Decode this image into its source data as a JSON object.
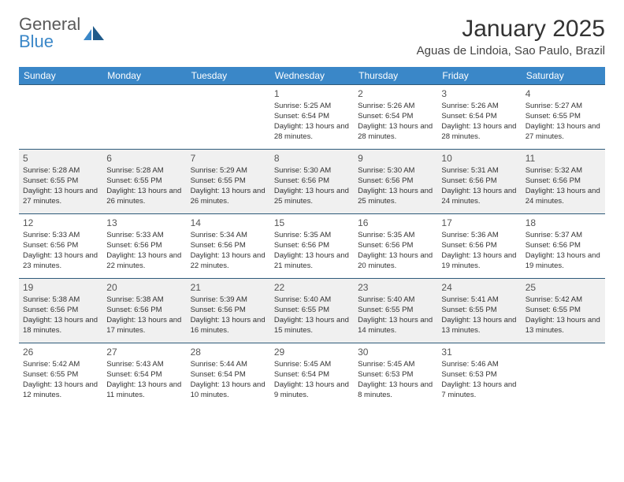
{
  "logo": {
    "text1": "General",
    "text2": "Blue"
  },
  "title": "January 2025",
  "location": "Aguas de Lindoia, Sao Paulo, Brazil",
  "colors": {
    "header_bg": "#3a87c8",
    "header_text": "#ffffff",
    "row_border": "#2e5a7a",
    "alt_row_bg": "#f0f0f0",
    "text": "#333333",
    "logo_gray": "#5a5a5a",
    "logo_blue": "#3a87c8"
  },
  "typography": {
    "title_fontsize": 30,
    "location_fontsize": 15,
    "daynum_fontsize": 12,
    "cell_fontsize": 9.5,
    "header_fontsize": 12
  },
  "day_headers": [
    "Sunday",
    "Monday",
    "Tuesday",
    "Wednesday",
    "Thursday",
    "Friday",
    "Saturday"
  ],
  "weeks": [
    [
      null,
      null,
      null,
      {
        "n": "1",
        "sr": "5:25 AM",
        "ss": "6:54 PM",
        "dl": "13 hours and 28 minutes."
      },
      {
        "n": "2",
        "sr": "5:26 AM",
        "ss": "6:54 PM",
        "dl": "13 hours and 28 minutes."
      },
      {
        "n": "3",
        "sr": "5:26 AM",
        "ss": "6:54 PM",
        "dl": "13 hours and 28 minutes."
      },
      {
        "n": "4",
        "sr": "5:27 AM",
        "ss": "6:55 PM",
        "dl": "13 hours and 27 minutes."
      }
    ],
    [
      {
        "n": "5",
        "sr": "5:28 AM",
        "ss": "6:55 PM",
        "dl": "13 hours and 27 minutes."
      },
      {
        "n": "6",
        "sr": "5:28 AM",
        "ss": "6:55 PM",
        "dl": "13 hours and 26 minutes."
      },
      {
        "n": "7",
        "sr": "5:29 AM",
        "ss": "6:55 PM",
        "dl": "13 hours and 26 minutes."
      },
      {
        "n": "8",
        "sr": "5:30 AM",
        "ss": "6:56 PM",
        "dl": "13 hours and 25 minutes."
      },
      {
        "n": "9",
        "sr": "5:30 AM",
        "ss": "6:56 PM",
        "dl": "13 hours and 25 minutes."
      },
      {
        "n": "10",
        "sr": "5:31 AM",
        "ss": "6:56 PM",
        "dl": "13 hours and 24 minutes."
      },
      {
        "n": "11",
        "sr": "5:32 AM",
        "ss": "6:56 PM",
        "dl": "13 hours and 24 minutes."
      }
    ],
    [
      {
        "n": "12",
        "sr": "5:33 AM",
        "ss": "6:56 PM",
        "dl": "13 hours and 23 minutes."
      },
      {
        "n": "13",
        "sr": "5:33 AM",
        "ss": "6:56 PM",
        "dl": "13 hours and 22 minutes."
      },
      {
        "n": "14",
        "sr": "5:34 AM",
        "ss": "6:56 PM",
        "dl": "13 hours and 22 minutes."
      },
      {
        "n": "15",
        "sr": "5:35 AM",
        "ss": "6:56 PM",
        "dl": "13 hours and 21 minutes."
      },
      {
        "n": "16",
        "sr": "5:35 AM",
        "ss": "6:56 PM",
        "dl": "13 hours and 20 minutes."
      },
      {
        "n": "17",
        "sr": "5:36 AM",
        "ss": "6:56 PM",
        "dl": "13 hours and 19 minutes."
      },
      {
        "n": "18",
        "sr": "5:37 AM",
        "ss": "6:56 PM",
        "dl": "13 hours and 19 minutes."
      }
    ],
    [
      {
        "n": "19",
        "sr": "5:38 AM",
        "ss": "6:56 PM",
        "dl": "13 hours and 18 minutes."
      },
      {
        "n": "20",
        "sr": "5:38 AM",
        "ss": "6:56 PM",
        "dl": "13 hours and 17 minutes."
      },
      {
        "n": "21",
        "sr": "5:39 AM",
        "ss": "6:56 PM",
        "dl": "13 hours and 16 minutes."
      },
      {
        "n": "22",
        "sr": "5:40 AM",
        "ss": "6:55 PM",
        "dl": "13 hours and 15 minutes."
      },
      {
        "n": "23",
        "sr": "5:40 AM",
        "ss": "6:55 PM",
        "dl": "13 hours and 14 minutes."
      },
      {
        "n": "24",
        "sr": "5:41 AM",
        "ss": "6:55 PM",
        "dl": "13 hours and 13 minutes."
      },
      {
        "n": "25",
        "sr": "5:42 AM",
        "ss": "6:55 PM",
        "dl": "13 hours and 13 minutes."
      }
    ],
    [
      {
        "n": "26",
        "sr": "5:42 AM",
        "ss": "6:55 PM",
        "dl": "13 hours and 12 minutes."
      },
      {
        "n": "27",
        "sr": "5:43 AM",
        "ss": "6:54 PM",
        "dl": "13 hours and 11 minutes."
      },
      {
        "n": "28",
        "sr": "5:44 AM",
        "ss": "6:54 PM",
        "dl": "13 hours and 10 minutes."
      },
      {
        "n": "29",
        "sr": "5:45 AM",
        "ss": "6:54 PM",
        "dl": "13 hours and 9 minutes."
      },
      {
        "n": "30",
        "sr": "5:45 AM",
        "ss": "6:53 PM",
        "dl": "13 hours and 8 minutes."
      },
      {
        "n": "31",
        "sr": "5:46 AM",
        "ss": "6:53 PM",
        "dl": "13 hours and 7 minutes."
      },
      null
    ]
  ],
  "labels": {
    "sunrise": "Sunrise:",
    "sunset": "Sunset:",
    "daylight": "Daylight:"
  }
}
